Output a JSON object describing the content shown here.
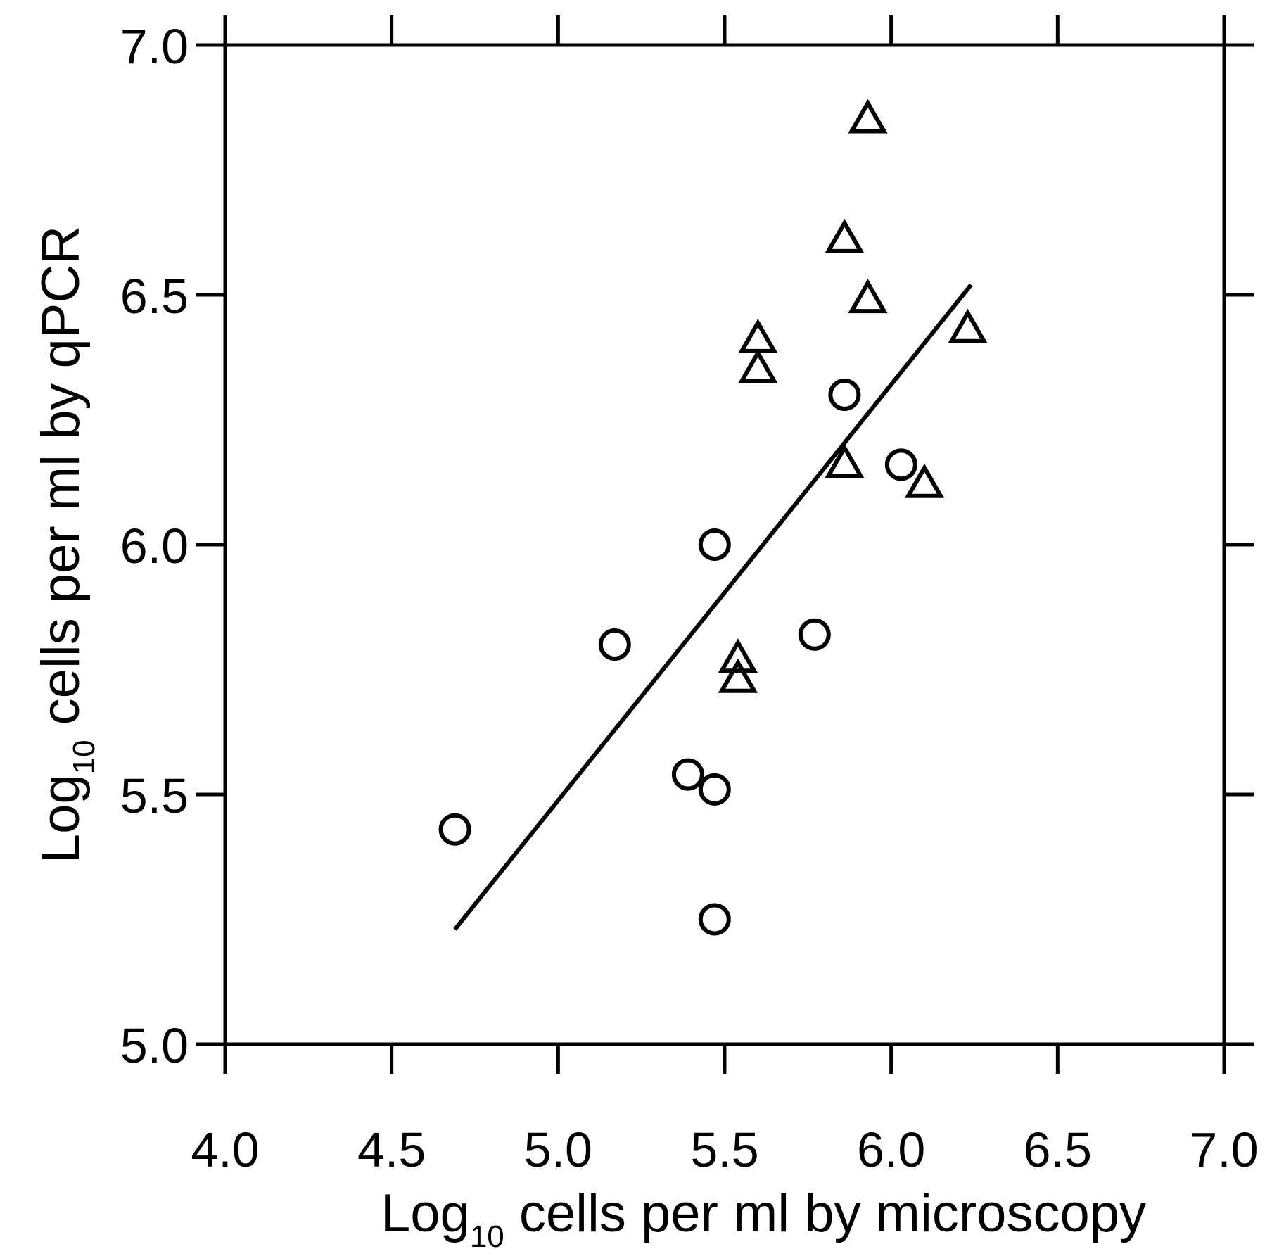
{
  "chart_data": {
    "type": "scatter",
    "title": "",
    "xlabel": {
      "prefix": "Log",
      "sub": "10",
      "suffix": " cells per ml by microscopy"
    },
    "ylabel": {
      "prefix": "Log",
      "sub": "10",
      "suffix": " cells per ml by qPCR"
    },
    "xlim": [
      4.0,
      7.0
    ],
    "ylim": [
      5.0,
      7.0
    ],
    "xticks": [
      "4.0",
      "4.5",
      "5.0",
      "5.5",
      "6.0",
      "6.5",
      "7.0"
    ],
    "yticks": [
      "5.0",
      "5.5",
      "6.0",
      "6.5",
      "7.0"
    ],
    "grid": false,
    "series": [
      {
        "marker": "circle",
        "points": [
          {
            "x": 4.69,
            "y": 5.43
          },
          {
            "x": 5.17,
            "y": 5.8
          },
          {
            "x": 5.39,
            "y": 5.54
          },
          {
            "x": 5.47,
            "y": 5.51
          },
          {
            "x": 5.47,
            "y": 6.0
          },
          {
            "x": 5.47,
            "y": 5.25
          },
          {
            "x": 5.77,
            "y": 5.82
          },
          {
            "x": 5.86,
            "y": 6.3
          },
          {
            "x": 6.03,
            "y": 6.16
          }
        ]
      },
      {
        "marker": "triangle",
        "points": [
          {
            "x": 5.54,
            "y": 5.77
          },
          {
            "x": 5.54,
            "y": 5.73
          },
          {
            "x": 5.6,
            "y": 6.41
          },
          {
            "x": 5.6,
            "y": 6.35
          },
          {
            "x": 5.86,
            "y": 6.61
          },
          {
            "x": 5.86,
            "y": 6.16
          },
          {
            "x": 5.93,
            "y": 6.85
          },
          {
            "x": 5.93,
            "y": 6.49
          },
          {
            "x": 6.1,
            "y": 6.12
          },
          {
            "x": 6.23,
            "y": 6.43
          }
        ]
      }
    ],
    "fit_line": {
      "x": [
        4.69,
        6.24
      ],
      "y": [
        5.23,
        6.52
      ]
    }
  }
}
